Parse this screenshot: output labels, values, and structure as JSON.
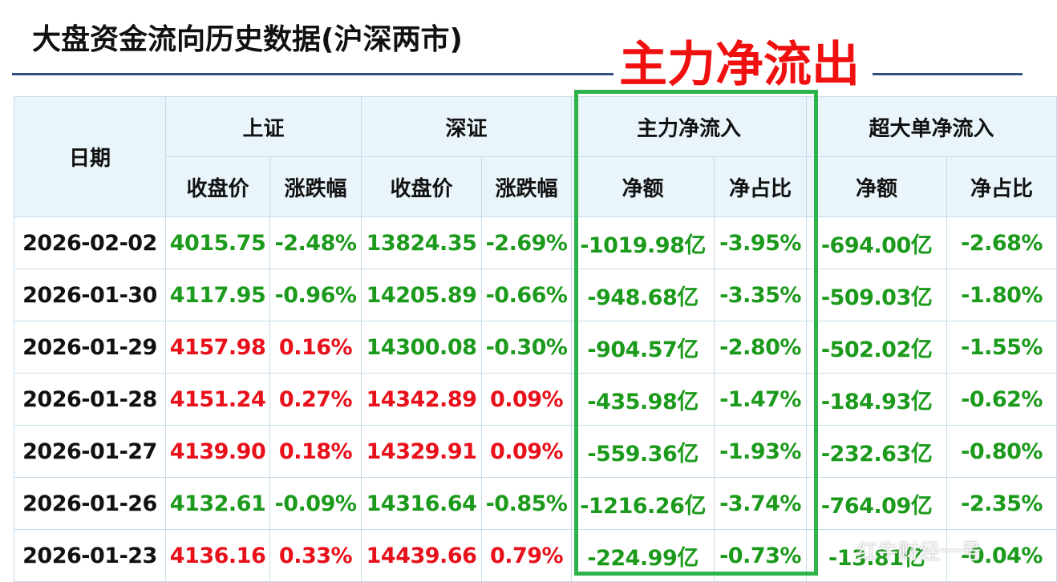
{
  "header": {
    "title": "大盘资金流向历史数据(沪深两市)",
    "annotation": "主力净流出"
  },
  "table": {
    "groups": [
      "日期",
      "上证",
      "深证",
      "主力净流入",
      "超大单净流入"
    ],
    "subheaders": [
      "收盘价",
      "涨跌幅",
      "收盘价",
      "涨跌幅",
      "净额",
      "净占比",
      "净额",
      "净占比"
    ],
    "rows": [
      [
        "2026-02-02",
        "4015.75",
        "-2.48%",
        "13824.35",
        "-2.69%",
        "-1019.98亿",
        "-3.95%",
        "-694.00亿",
        "-2.68%"
      ],
      [
        "2026-01-30",
        "4117.95",
        "-0.96%",
        "14205.89",
        "-0.66%",
        "-948.68亿",
        "-3.35%",
        "-509.03亿",
        "-1.80%"
      ],
      [
        "2026-01-29",
        "4157.98",
        "0.16%",
        "14300.08",
        "-0.30%",
        "-904.57亿",
        "-2.80%",
        "-502.02亿",
        "-1.55%"
      ],
      [
        "2026-01-28",
        "4151.24",
        "0.27%",
        "14342.89",
        "0.09%",
        "-435.98亿",
        "-1.47%",
        "-184.93亿",
        "-0.62%"
      ],
      [
        "2026-01-27",
        "4139.90",
        "0.18%",
        "14329.91",
        "0.09%",
        "-559.36亿",
        "-1.93%",
        "-232.63亿",
        "-0.80%"
      ],
      [
        "2026-01-26",
        "4132.61",
        "-0.09%",
        "14316.64",
        "-0.85%",
        "-1216.26亿",
        "-3.74%",
        "-764.09亿",
        "-2.35%"
      ],
      [
        "2026-01-23",
        "4136.16",
        "0.33%",
        "14439.66",
        "0.79%",
        "-224.99亿",
        "-0.73%",
        "-13.81亿",
        "-0.04%"
      ]
    ]
  },
  "watermark": "红牛财经一号"
}
